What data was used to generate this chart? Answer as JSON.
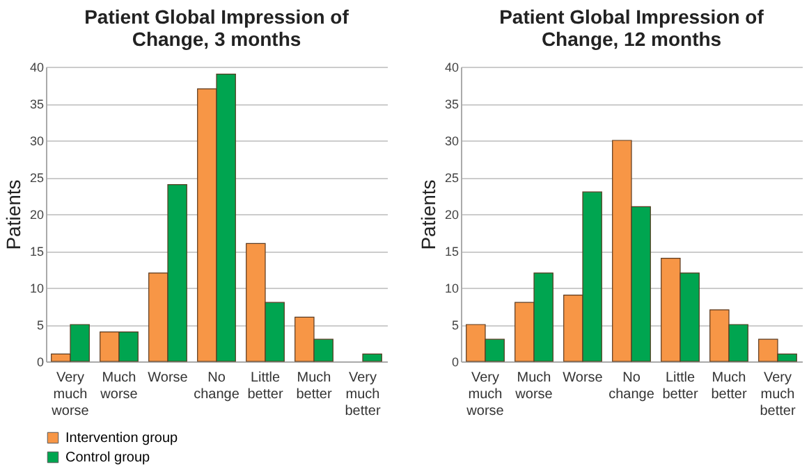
{
  "chart_data": [
    {
      "type": "bar",
      "title": "Patient Global Impression of Change, 3 months",
      "ylabel": "Patients",
      "categories": [
        "Very much worse",
        "Much worse",
        "Worse",
        "No change",
        "Little better",
        "Much better",
        "Very much better"
      ],
      "series": [
        {
          "name": "Intervention group",
          "color": "#f79646",
          "values": [
            1,
            4,
            12,
            37,
            16,
            6,
            0
          ]
        },
        {
          "name": "Control group",
          "color": "#00a550",
          "values": [
            5,
            4,
            24,
            39,
            8,
            3,
            1
          ]
        }
      ],
      "ylim": [
        0,
        40
      ],
      "yticks": [
        0,
        5,
        10,
        15,
        20,
        25,
        30,
        35,
        40
      ],
      "grid": "y",
      "legend": "bottom left"
    },
    {
      "type": "bar",
      "title": "Patient Global Impression of Change, 12 months",
      "ylabel": "Patients",
      "categories": [
        "Very much worse",
        "Much worse",
        "Worse",
        "No change",
        "Little better",
        "Much better",
        "Very much better"
      ],
      "series": [
        {
          "name": "Intervention group",
          "color": "#f79646",
          "values": [
            5,
            8,
            9,
            30,
            14,
            7,
            3
          ]
        },
        {
          "name": "Control group",
          "color": "#00a550",
          "values": [
            3,
            12,
            23,
            21,
            12,
            5,
            1
          ]
        }
      ],
      "ylim": [
        0,
        40
      ],
      "yticks": [
        0,
        5,
        10,
        15,
        20,
        25,
        30,
        35,
        40
      ],
      "grid": "y",
      "legend": false
    }
  ]
}
